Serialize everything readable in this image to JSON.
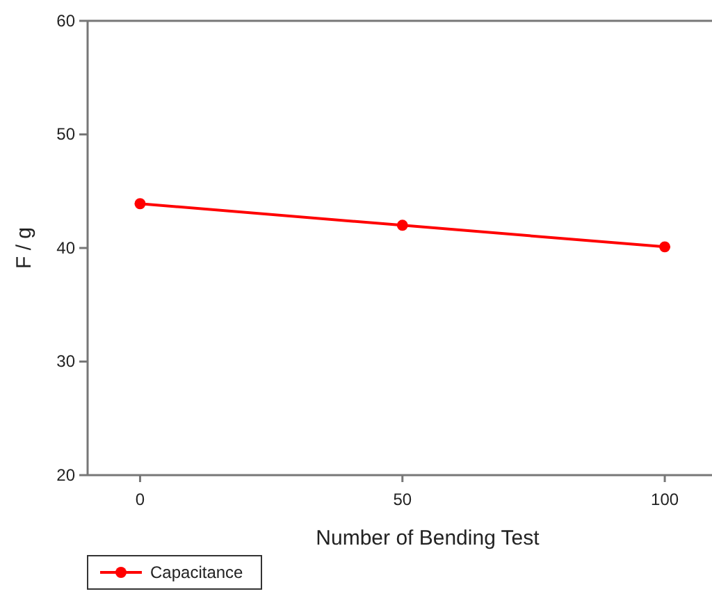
{
  "chart_data": {
    "type": "line",
    "xlabel": "Number of Bending Test",
    "ylabel": "F / g",
    "x": [
      0,
      50,
      100
    ],
    "series": [
      {
        "name": "Capacitance",
        "color": "#ff0000",
        "values": [
          43.9,
          42.0,
          40.1
        ]
      }
    ],
    "xlim": [
      -10,
      109
    ],
    "xticks": [
      0,
      50,
      100
    ],
    "ylim": [
      20,
      60
    ],
    "yticks": [
      20,
      30,
      40,
      50,
      60
    ],
    "grid": false,
    "legend": "bottom left",
    "marker": "circle",
    "line_style": "solid"
  }
}
